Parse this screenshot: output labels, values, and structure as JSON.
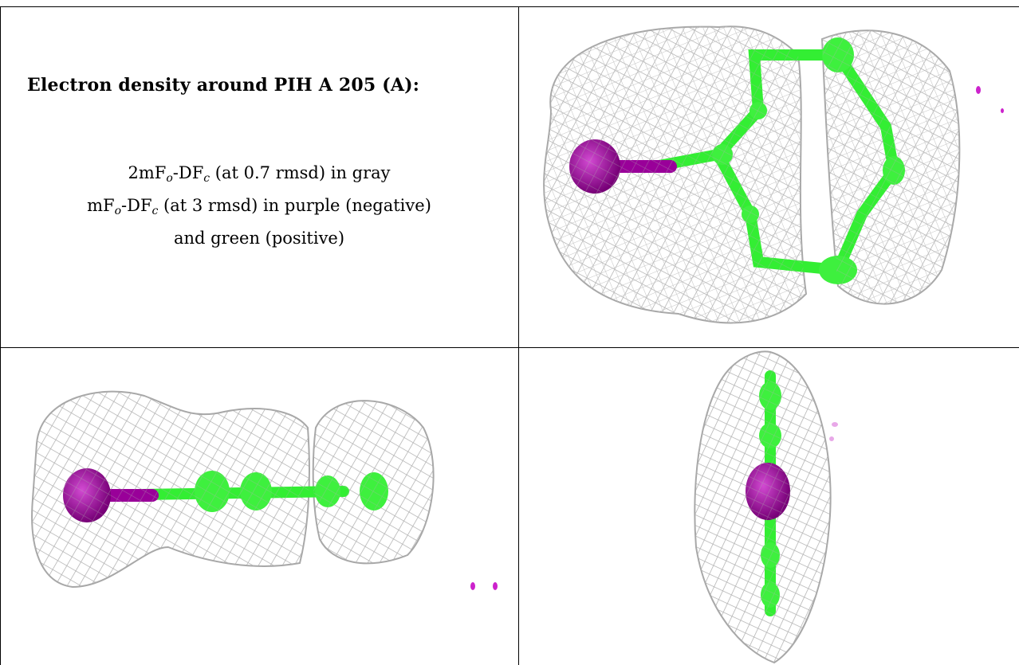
{
  "title": "Electron density around PIH A 205 (A):",
  "legend": {
    "line1": {
      "a": "2mF",
      "sub_o": "o",
      "b": "-DF",
      "sub_c": "c",
      "rest": " (at 0.7 rmsd) in gray"
    },
    "line2": {
      "a": "mF",
      "sub_o": "o",
      "b": "-DF",
      "sub_c": "c",
      "rest": " (at 3 rmsd) in purple (negative)"
    },
    "line3": "and green (positive)"
  },
  "colors": {
    "mesh": "#b9b9b9",
    "ligand": "#33ee33",
    "negative": "#990099",
    "border": "#000000"
  },
  "views": [
    "top-view",
    "side-view",
    "end-view"
  ]
}
